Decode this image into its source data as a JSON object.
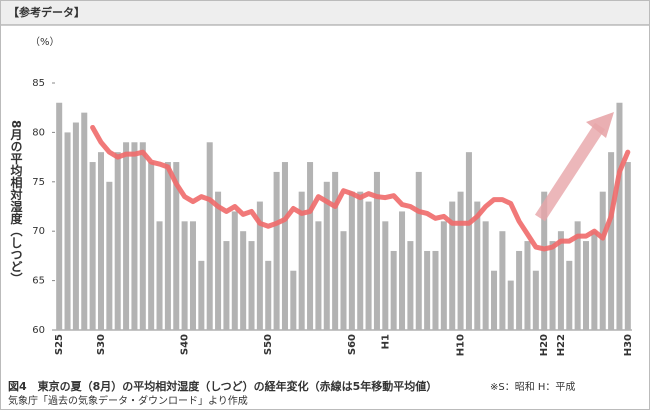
{
  "chart_data": {
    "type": "bar",
    "header": "【参考データ】",
    "y_unit": "（%）",
    "ylabel": "8月の平均相対湿度（しつど）",
    "caption": "図4　東京の夏（8月）の平均相対湿度（しつど）の経年変化（赤線は5年移動平均値）",
    "note": "※S：昭和 H：平成",
    "source": "気象庁「過去の気象データ・ダウンロード」より作成",
    "categories": [
      "S25",
      null,
      null,
      null,
      null,
      "S30",
      null,
      null,
      null,
      null,
      null,
      null,
      null,
      null,
      null,
      "S40",
      null,
      null,
      null,
      null,
      null,
      null,
      null,
      null,
      null,
      "S50",
      null,
      null,
      null,
      null,
      null,
      null,
      null,
      null,
      null,
      "S60",
      null,
      null,
      null,
      "H1",
      null,
      null,
      null,
      null,
      null,
      null,
      null,
      null,
      "H10",
      null,
      null,
      null,
      null,
      null,
      null,
      null,
      null,
      null,
      "H20",
      null,
      "H22",
      null,
      null,
      null,
      null,
      null,
      null,
      null,
      "H30"
    ],
    "series": [
      {
        "type": "bar",
        "color": "#b3b3b3",
        "values": [
          83,
          80,
          81,
          82,
          77,
          78,
          75,
          78,
          79,
          79,
          79,
          77,
          71,
          77,
          77,
          71,
          71,
          67,
          79,
          74,
          69,
          72,
          70,
          69,
          73,
          67,
          76,
          77,
          66,
          74,
          77,
          71,
          75,
          76,
          70,
          74,
          74,
          73,
          76,
          71,
          68,
          72,
          69,
          76,
          68,
          68,
          71,
          73,
          74,
          78,
          73,
          71,
          66,
          70,
          65,
          68,
          69,
          66,
          74,
          69,
          70,
          67,
          71,
          69,
          70,
          74,
          78,
          83,
          77
        ]
      },
      {
        "type": "line",
        "color": "#f06a6a",
        "values": [
          null,
          null,
          null,
          null,
          80.5,
          79,
          78,
          77.5,
          77.8,
          77.8,
          78,
          77,
          76.8,
          76.5,
          74.8,
          73.5,
          73,
          73.5,
          73.2,
          72.5,
          72,
          72.5,
          71.7,
          72,
          70.8,
          70.5,
          70.8,
          71.2,
          72.3,
          71.8,
          72,
          73.5,
          73,
          72.5,
          74.1,
          73.8,
          73.4,
          73.8,
          73.5,
          73.4,
          73.6,
          72.7,
          72.5,
          72,
          71.8,
          71.3,
          71.5,
          70.8,
          70.8,
          70.8,
          71.5,
          72.5,
          73.2,
          73.2,
          72.8,
          71,
          69.7,
          68.4,
          68.2,
          68.4,
          69,
          69,
          69.5,
          69.5,
          70,
          69.3,
          71.5,
          76,
          78
        ]
      }
    ],
    "ylim": [
      60,
      85
    ],
    "yticks": [
      60,
      65,
      70,
      75,
      80,
      85
    ],
    "grid": false
  }
}
